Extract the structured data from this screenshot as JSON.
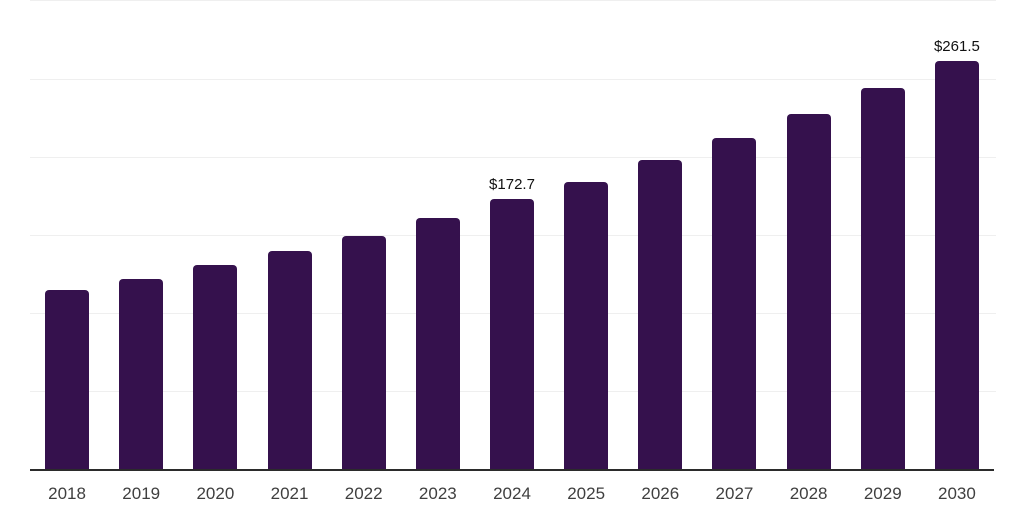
{
  "chart_data": {
    "type": "bar",
    "title": "",
    "xlabel": "",
    "ylabel": "",
    "categories": [
      "2018",
      "2019",
      "2020",
      "2021",
      "2022",
      "2023",
      "2024",
      "2025",
      "2026",
      "2027",
      "2028",
      "2029",
      "2030"
    ],
    "values": [
      114.5,
      122.0,
      131.0,
      140.0,
      149.6,
      160.7,
      172.7,
      184.0,
      198.2,
      212.2,
      227.5,
      244.3,
      261.5
    ],
    "data_labels": [
      "",
      "",
      "",
      "",
      "",
      "",
      "$172.7",
      "",
      "",
      "",
      "",
      "",
      "$261.5"
    ],
    "value_prefix": "$",
    "ylim": [
      0,
      300
    ],
    "gridline_step": 50,
    "grid": "horizontal-only",
    "y_axis_labels_visible": false,
    "legend": "none"
  },
  "colors": {
    "background": "#ffffff",
    "bar": "#35114D",
    "gridline": "#efefef",
    "axis_line": "#2b2b2b",
    "tick_label": "#3f3f3f",
    "data_label": "#111111"
  }
}
